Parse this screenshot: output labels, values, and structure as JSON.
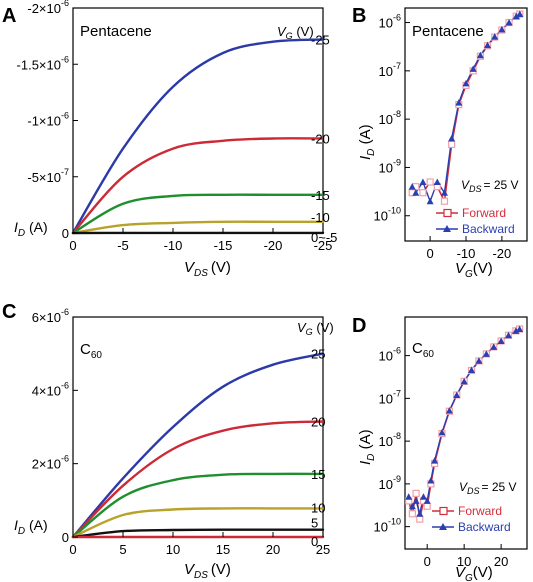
{
  "panels": [
    {
      "letter": "A",
      "material": "Pentacene",
      "vg_header": "(V)",
      "xlabel_sub": "DS",
      "xlabel_unit": "(V)",
      "ylabel_unit": "(A)",
      "y_exponent_ticks": [
        {
          "mant": "-2×10",
          "exp": "-6"
        },
        {
          "mant": "-1.5×10",
          "exp": "-6"
        },
        {
          "mant": "-1×10",
          "exp": "-6"
        },
        {
          "mant": "-5×10",
          "exp": "-7"
        },
        {
          "mant": "0",
          "exp": ""
        }
      ],
      "x_ticks": [
        "0",
        "-5",
        "-10",
        "-15",
        "-20",
        "-25"
      ],
      "vg_labels": [
        "-25",
        "-20",
        "-15",
        "-10",
        "0~-5"
      ]
    },
    {
      "letter": "B",
      "material": "Pentacene",
      "vds_label": "= 25 V",
      "x_ticks": [
        "0",
        "-10",
        "-20"
      ],
      "y_ticks": [
        {
          "exp": "-6"
        },
        {
          "exp": "-7"
        },
        {
          "exp": "-8"
        },
        {
          "exp": "-9"
        },
        {
          "exp": "-10"
        }
      ],
      "legend": [
        "Forward",
        "Backward"
      ]
    },
    {
      "letter": "C",
      "material": "C",
      "material_sub": "60",
      "vg_header": "(V)",
      "xlabel_sub": "DS",
      "xlabel_unit": "(V)",
      "ylabel_unit": "(A)",
      "y_exponent_ticks": [
        {
          "mant": "6×10",
          "exp": "-6"
        },
        {
          "mant": "4×10",
          "exp": "-6"
        },
        {
          "mant": "2×10",
          "exp": "-6"
        },
        {
          "mant": "0",
          "exp": ""
        }
      ],
      "x_ticks": [
        "0",
        "5",
        "10",
        "15",
        "20",
        "25"
      ],
      "vg_labels": [
        "25",
        "20",
        "15",
        "10",
        "5",
        "0"
      ]
    },
    {
      "letter": "D",
      "material": "C",
      "material_sub": "60",
      "vds_label": "= 25 V",
      "x_ticks": [
        "0",
        "10",
        "20"
      ],
      "y_ticks": [
        {
          "exp": "-6"
        },
        {
          "exp": "-7"
        },
        {
          "exp": "-8"
        },
        {
          "exp": "-9"
        },
        {
          "exp": "-10"
        }
      ],
      "legend": [
        "Forward",
        "Backward"
      ]
    }
  ],
  "colors": {
    "vg_series": [
      "#2b3aa8",
      "#cc2a36",
      "#1f8f2e",
      "#b8a22a",
      "#111111",
      "#cc2a36"
    ],
    "forward": "#d42c3a",
    "forward_marker": "#f0a0a8",
    "backward": "#2a3fb0"
  },
  "chart_data": [
    {
      "type": "line",
      "panel": "A",
      "xlabel": "V_DS (V)",
      "ylabel": "I_D (A)",
      "xlim": [
        0,
        -25
      ],
      "ylim": [
        0,
        -2e-06
      ],
      "series": [
        {
          "name": "-25",
          "x": [
            0,
            -5,
            -10,
            -15,
            -20,
            -25
          ],
          "values": [
            0,
            -7.5e-07,
            -1.3e-06,
            -1.6e-06,
            -1.7e-06,
            -1.72e-06
          ]
        },
        {
          "name": "-20",
          "x": [
            0,
            -5,
            -10,
            -15,
            -20,
            -25
          ],
          "values": [
            0,
            -5e-07,
            -7.5e-07,
            -8.2e-07,
            -8.4e-07,
            -8.4e-07
          ]
        },
        {
          "name": "-15",
          "x": [
            0,
            -5,
            -10,
            -15,
            -20,
            -25
          ],
          "values": [
            0,
            -2.6e-07,
            -3.3e-07,
            -3.4e-07,
            -3.4e-07,
            -3.4e-07
          ]
        },
        {
          "name": "-10",
          "x": [
            0,
            -5,
            -10,
            -15,
            -20,
            -25
          ],
          "values": [
            0,
            -7e-08,
            -9e-08,
            -1e-07,
            -1e-07,
            -1e-07
          ]
        },
        {
          "name": "0~-5",
          "x": [
            0,
            -5,
            -10,
            -15,
            -20,
            -25
          ],
          "values": [
            0,
            -1e-09,
            -1e-09,
            -1e-09,
            -1e-09,
            -1e-09
          ]
        }
      ]
    },
    {
      "type": "scatter",
      "panel": "B",
      "xlabel": "V_G (V)",
      "ylabel": "I_D (A)",
      "yscale": "log",
      "xlim": [
        7,
        -27
      ],
      "ylim": [
        3e-11,
        2e-06
      ],
      "series": [
        {
          "name": "Forward",
          "x": [
            5,
            4,
            2,
            0,
            -2,
            -4,
            -6,
            -8,
            -10,
            -12,
            -14,
            -16,
            -18,
            -20,
            -22,
            -24,
            -25
          ],
          "values": [
            3e-10,
            4e-10,
            3e-10,
            5e-10,
            4e-10,
            2e-10,
            3e-09,
            2e-08,
            5e-08,
            1e-07,
            2e-07,
            3.3e-07,
            5e-07,
            7e-07,
            1e-06,
            1.35e-06,
            1.5e-06
          ]
        },
        {
          "name": "Backward",
          "x": [
            5,
            4,
            2,
            0,
            -2,
            -4,
            -6,
            -8,
            -10,
            -12,
            -14,
            -16,
            -18,
            -20,
            -22,
            -24,
            -25
          ],
          "values": [
            4e-10,
            3e-10,
            5e-10,
            2e-10,
            5e-10,
            3e-10,
            4e-09,
            2.2e-08,
            5.5e-08,
            1.1e-07,
            2.1e-07,
            3.4e-07,
            5.1e-07,
            7.2e-07,
            1e-06,
            1.35e-06,
            1.5e-06
          ]
        }
      ]
    },
    {
      "type": "line",
      "panel": "C",
      "xlabel": "V_DS (V)",
      "ylabel": "I_D (A)",
      "xlim": [
        0,
        25
      ],
      "ylim": [
        0,
        6e-06
      ],
      "series": [
        {
          "name": "25",
          "x": [
            0,
            5,
            10,
            15,
            20,
            25
          ],
          "values": [
            0,
            1.6e-06,
            3e-06,
            4.1e-06,
            4.7e-06,
            5e-06
          ]
        },
        {
          "name": "20",
          "x": [
            0,
            5,
            10,
            15,
            20,
            25
          ],
          "values": [
            0,
            1.4e-06,
            2.4e-06,
            2.9e-06,
            3.1e-06,
            3.15e-06
          ]
        },
        {
          "name": "15",
          "x": [
            0,
            5,
            10,
            15,
            20,
            25
          ],
          "values": [
            0,
            1.1e-06,
            1.55e-06,
            1.7e-06,
            1.72e-06,
            1.72e-06
          ]
        },
        {
          "name": "10",
          "x": [
            0,
            5,
            10,
            15,
            20,
            25
          ],
          "values": [
            0,
            6e-07,
            7.5e-07,
            7.8e-07,
            7.8e-07,
            7.8e-07
          ]
        },
        {
          "name": "5",
          "x": [
            0,
            5,
            10,
            15,
            20,
            25
          ],
          "values": [
            0,
            1.6e-07,
            1.9e-07,
            2e-07,
            2e-07,
            2e-07
          ]
        },
        {
          "name": "0",
          "x": [
            0,
            5,
            10,
            15,
            20,
            25
          ],
          "values": [
            0,
            0,
            0,
            0,
            0,
            0
          ]
        }
      ]
    },
    {
      "type": "scatter",
      "panel": "D",
      "xlabel": "V_G (V)",
      "ylabel": "I_D (A)",
      "yscale": "log",
      "xlim": [
        -6,
        27
      ],
      "ylim": [
        3e-11,
        8e-06
      ],
      "series": [
        {
          "name": "Forward",
          "x": [
            -5,
            -4,
            -3,
            -2,
            -1,
            0,
            1,
            2,
            4,
            6,
            8,
            10,
            12,
            14,
            16,
            18,
            20,
            22,
            24,
            25
          ],
          "values": [
            4e-10,
            2e-10,
            6e-10,
            1.5e-10,
            4e-10,
            3e-10,
            1e-09,
            3e-09,
            1.5e-08,
            5e-08,
            1.2e-07,
            2.5e-07,
            4.5e-07,
            7.5e-07,
            1.1e-06,
            1.6e-06,
            2.2e-06,
            3e-06,
            3.8e-06,
            4.2e-06
          ]
        },
        {
          "name": "Backward",
          "x": [
            -5,
            -4,
            -3,
            -2,
            -1,
            0,
            1,
            2,
            4,
            6,
            8,
            10,
            12,
            14,
            16,
            18,
            20,
            22,
            24,
            25
          ],
          "values": [
            5e-10,
            3e-10,
            4e-10,
            2e-10,
            5e-10,
            4e-10,
            1.2e-09,
            3.5e-09,
            1.6e-08,
            5.2e-08,
            1.2e-07,
            2.5e-07,
            4.6e-07,
            7.6e-07,
            1.1e-06,
            1.6e-06,
            2.2e-06,
            3e-06,
            3.8e-06,
            4.2e-06
          ]
        }
      ]
    }
  ]
}
